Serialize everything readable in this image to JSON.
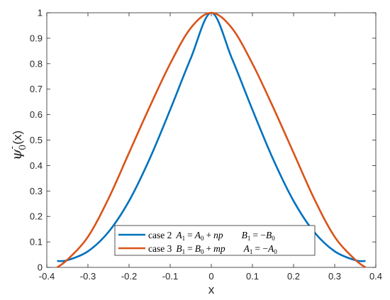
{
  "chart_data": {
    "type": "line",
    "xlabel": "x",
    "ylabel": "ψ",
    "ylabel_sub": "0",
    "ylabel_sup": "-",
    "ylabel_arg": "(x)",
    "xlim": [
      -0.4,
      0.4
    ],
    "ylim": [
      0,
      1
    ],
    "xticks": [
      "-0.4",
      "-0.3",
      "-0.2",
      "-0.1",
      "0",
      "0.1",
      "0.2",
      "0.3",
      "0.4"
    ],
    "yticks": [
      "0",
      "0.1",
      "0.2",
      "0.3",
      "0.4",
      "0.5",
      "0.6",
      "0.7",
      "0.8",
      "0.9",
      "1"
    ],
    "grid": false,
    "legend_position": "bottom-center",
    "series": [
      {
        "name": "case 2  A1 = A0 + np     B1 = −B0",
        "color": "#0072BD",
        "x": [
          -0.375,
          -0.35,
          -0.3,
          -0.25,
          -0.2,
          -0.15,
          -0.1,
          -0.05,
          0,
          0.05,
          0.1,
          0.15,
          0.2,
          0.25,
          0.3,
          0.35,
          0.375
        ],
        "y": [
          0.025,
          0.028,
          0.063,
          0.139,
          0.261,
          0.426,
          0.619,
          0.821,
          1.0,
          0.821,
          0.619,
          0.426,
          0.261,
          0.139,
          0.063,
          0.028,
          0.025
        ]
      },
      {
        "name": "case 3  B1 = B0 + mp     A1 = −A0",
        "color": "#D95319",
        "x": [
          -0.375,
          -0.35,
          -0.3,
          -0.25,
          -0.2,
          -0.15,
          -0.1,
          -0.05,
          0,
          0.05,
          0.1,
          0.15,
          0.2,
          0.25,
          0.3,
          0.35,
          0.375
        ],
        "y": [
          0.0,
          0.03,
          0.12,
          0.27,
          0.45,
          0.63,
          0.8,
          0.94,
          1.0,
          0.94,
          0.8,
          0.63,
          0.45,
          0.27,
          0.12,
          0.03,
          0.0
        ]
      }
    ]
  },
  "legend": {
    "case2": {
      "label": "case 2",
      "eq1_lhs": "A",
      "eq1_lhs_sub": "1",
      "eq1_mid": "A",
      "eq1_mid_sub": "0",
      "eq1_rhs": "np",
      "eq2_lhs": "B",
      "eq2_lhs_sub": "1",
      "eq2_rhs": "B",
      "eq2_rhs_sub": "0"
    },
    "case3": {
      "label": "case 3",
      "eq1_lhs": "B",
      "eq1_lhs_sub": "1",
      "eq1_mid": "B",
      "eq1_mid_sub": "0",
      "eq1_rhs": "mp",
      "eq2_lhs": "A",
      "eq2_lhs_sub": "1",
      "eq2_rhs": "A",
      "eq2_rhs_sub": "0"
    }
  }
}
